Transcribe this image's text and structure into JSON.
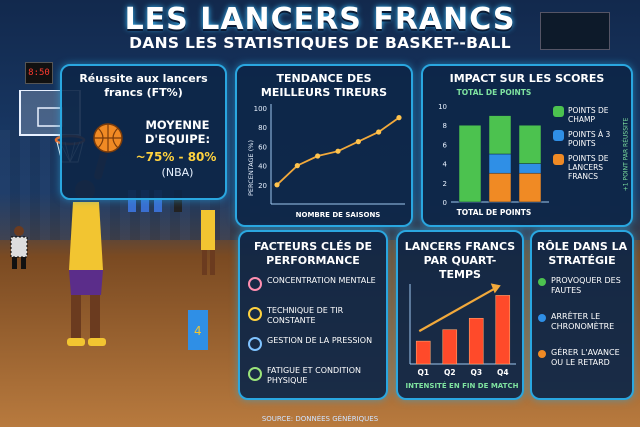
{
  "title": "LES LANCERS FRANCS",
  "subtitle": "DANS LES STATISTIQUES DE BASKET--BALL",
  "scoreboard": "8:50",
  "player_number": "4",
  "panels": {
    "ft": {
      "title": "Réussite aux lancers francs (FT%)",
      "label": "MOYENNE D'EQUIPE:",
      "value": "~75% - 80%",
      "note": "(NBA)"
    },
    "trend": {
      "title": "TENDANCE DES MEILLEURS TIREURS",
      "ylabel": "PERCENTAGE (%)",
      "xlabel": "NOMBRE DE SAISONS",
      "yticks": [
        "100",
        "80",
        "60",
        "40",
        "20"
      ]
    },
    "impact": {
      "title": "IMPACT SUR LES SCORES",
      "top_label": "TOTAL DE POINTS",
      "bottom_label": "TOTAL DE POINTS",
      "side_label": "+1 POINT PAR RÉUSSITE",
      "yticks": [
        "10",
        "8",
        "6",
        "4",
        "2",
        "0"
      ],
      "legend": [
        {
          "label": "POINTS DE CHAMP",
          "color": "#4cc24f"
        },
        {
          "label": "POINTS À 3 POINTS",
          "color": "#2f8fe6"
        },
        {
          "label": "POINTS DE LANCERS FRANCS",
          "color": "#f08a24"
        }
      ]
    },
    "factors": {
      "title": "FACTEURS CLÉS DE PERFORMANCE",
      "items": [
        "CONCENTRATION MENTALE",
        "TECHNIQUE DE TIR CONSTANTE",
        "GESTION DE LA PRESSION",
        "FATIGUE ET CONDITION PHYSIQUE"
      ]
    },
    "quarters": {
      "title": "LANCERS FRANCS PAR QUART-TEMPS",
      "caption": "INTENSITÉ EN FIN DE MATCH"
    },
    "role": {
      "title": "RÔLE DANS LA STRATÉGIE",
      "items": [
        "PROVOQUER DES FAUTES",
        "ARRÊTER LE CHRONOMÈTRE",
        "GÉRER L'AVANCE OU LE RETARD"
      ]
    }
  },
  "footer": "SOURCE: DONNÉES GÉNÉRIQUES",
  "chart_data": [
    {
      "type": "line",
      "title": "TENDANCE DES MEILLEURS TIREURS",
      "xlabel": "NOMBRE DE SAISONS",
      "ylabel": "PERCENTAGE (%)",
      "ylim": [
        0,
        100
      ],
      "x": [
        1,
        2,
        3,
        4,
        5,
        6,
        7
      ],
      "values": [
        20,
        40,
        50,
        55,
        65,
        75,
        90
      ]
    },
    {
      "type": "bar",
      "title": "IMPACT SUR LES SCORES",
      "categories": [
        "1",
        "2",
        "3"
      ],
      "ylim": [
        0,
        10
      ],
      "series": [
        {
          "name": "POINTS DE LANCERS FRANCS",
          "values": [
            0,
            3,
            3
          ]
        },
        {
          "name": "POINTS À 3 POINTS",
          "values": [
            0,
            2,
            1
          ]
        },
        {
          "name": "POINTS DE CHAMP",
          "values": [
            8,
            4,
            4
          ]
        }
      ]
    },
    {
      "type": "bar",
      "title": "LANCERS FRANCS PAR QUART-TEMPS",
      "categories": [
        "Q1",
        "Q2",
        "Q3",
        "Q4"
      ],
      "values": [
        2,
        3,
        4,
        6
      ],
      "ylim": [
        0,
        7
      ]
    }
  ]
}
